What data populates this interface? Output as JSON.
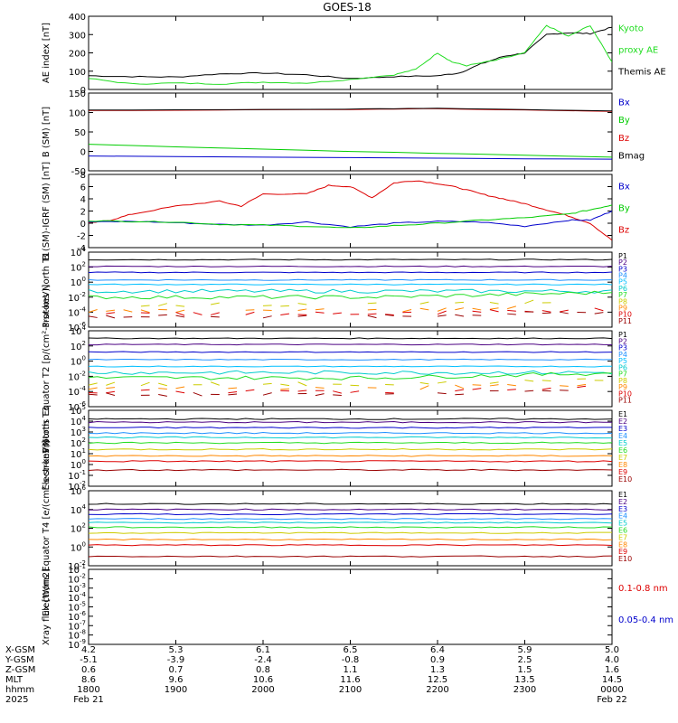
{
  "title": "GOES-18",
  "colors": {
    "black": "#000000",
    "blue": "#0000cc",
    "green": "#00cc00",
    "red": "#dd0000",
    "ae_green": "#22dd22",
    "darkred": "#990000"
  },
  "time_axis": {
    "start_hhmm": "1800",
    "end_hhmm": "0000",
    "ticks": [
      "1800",
      "1900",
      "2000",
      "2100",
      "2200",
      "2300",
      "0000"
    ],
    "date_left": "Feb 21",
    "date_right": "Feb 22",
    "year": "2025"
  },
  "ephemeris": {
    "row_labels": [
      "X-GSM",
      "Y-GSM",
      "Z-GSM",
      "MLT",
      "hhmm",
      "2025"
    ],
    "rows": [
      [
        "4.2",
        "5.3",
        "6.1",
        "6.5",
        "6.4",
        "5.9",
        "5.0"
      ],
      [
        "-5.1",
        "-3.9",
        "-2.4",
        "-0.8",
        "0.9",
        "2.5",
        "4.0"
      ],
      [
        "0.6",
        "0.7",
        "0.8",
        "1.1",
        "1.3",
        "1.5",
        "1.6"
      ],
      [
        "8.6",
        "9.6",
        "10.6",
        "11.6",
        "12.5",
        "13.5",
        "14.5"
      ],
      [
        "1800",
        "1900",
        "2000",
        "2100",
        "2200",
        "2300",
        "0000"
      ],
      [
        "Feb 21",
        "",
        "",
        "",
        "",
        "",
        "Feb 22"
      ]
    ]
  },
  "chart_data": [
    {
      "type": "line",
      "ylabel": "AE index [nT]",
      "ylim": [
        0,
        400
      ],
      "yticks": [
        "0",
        "100",
        "200",
        "300",
        "400"
      ],
      "legend": [
        {
          "text": "Kyoto",
          "color": "#22dd22"
        },
        {
          "text": "proxy AE",
          "color": "#22dd22"
        },
        {
          "text": "Themis AE",
          "color": "#000000"
        }
      ],
      "series": [
        {
          "name": "Themis AE",
          "color": "#000000",
          "x": [
            "1800",
            "1830",
            "1900",
            "1930",
            "2000",
            "2030",
            "2100",
            "2130",
            "2200",
            "2215",
            "2230",
            "2245",
            "2300",
            "2315",
            "2330",
            "2345",
            "0000"
          ],
          "y": [
            75,
            70,
            68,
            85,
            90,
            80,
            60,
            70,
            75,
            90,
            140,
            180,
            200,
            300,
            310,
            305,
            340
          ]
        },
        {
          "name": "Kyoto proxy AE",
          "color": "#22dd22",
          "x": [
            "1800",
            "1830",
            "1900",
            "1930",
            "2000",
            "2030",
            "2100",
            "2130",
            "2145",
            "2200",
            "2210",
            "2220",
            "2240",
            "2300",
            "2315",
            "2330",
            "2345",
            "0000"
          ],
          "y": [
            60,
            30,
            35,
            30,
            40,
            35,
            55,
            80,
            110,
            200,
            150,
            130,
            160,
            200,
            350,
            290,
            350,
            150
          ]
        }
      ]
    },
    {
      "type": "line",
      "ylabel": "B (SM) [nT]",
      "ylim": [
        -50,
        150
      ],
      "yticks": [
        "-50",
        "0",
        "50",
        "100",
        "150"
      ],
      "legend": [
        {
          "text": "Bx",
          "color": "#0000cc"
        },
        {
          "text": "By",
          "color": "#00cc00"
        },
        {
          "text": "Bz",
          "color": "#dd0000"
        },
        {
          "text": "Bmag",
          "color": "#000000"
        }
      ],
      "series": [
        {
          "name": "Bx",
          "color": "#0000cc",
          "x": [
            "1800",
            "0000"
          ],
          "y": [
            -12,
            -20
          ]
        },
        {
          "name": "By",
          "color": "#00cc00",
          "x": [
            "1800",
            "2100",
            "0000"
          ],
          "y": [
            18,
            0,
            -15
          ]
        },
        {
          "name": "Bz",
          "color": "#dd0000",
          "x": [
            "1800",
            "2100",
            "2200",
            "0000"
          ],
          "y": [
            105,
            108,
            110,
            103
          ]
        },
        {
          "name": "Bmag",
          "color": "#000000",
          "x": [
            "1800",
            "2100",
            "2200",
            "0000"
          ],
          "y": [
            106,
            109,
            111,
            104
          ]
        }
      ]
    },
    {
      "type": "line",
      "ylabel": "B (SM)-IGRF (SM) [nT]",
      "ylim": [
        -4,
        8
      ],
      "yticks": [
        "-4",
        "-2",
        "0",
        "2",
        "4",
        "6",
        "8"
      ],
      "legend": [
        {
          "text": "Bx",
          "color": "#0000cc"
        },
        {
          "text": "By",
          "color": "#00cc00"
        },
        {
          "text": "Bz",
          "color": "#dd0000"
        }
      ],
      "series": [
        {
          "name": "Bz",
          "color": "#dd0000",
          "x": [
            "1800",
            "1815",
            "1830",
            "1900",
            "1930",
            "1945",
            "2000",
            "2030",
            "2045",
            "2100",
            "2115",
            "2130",
            "2145",
            "2200",
            "2215",
            "2230",
            "2245",
            "2300",
            "2315",
            "2330",
            "2345",
            "0000"
          ],
          "y": [
            0,
            0.5,
            1.5,
            2.8,
            3.6,
            2.8,
            4.8,
            4.8,
            6.2,
            6.0,
            4.2,
            6.6,
            7.0,
            6.5,
            5.8,
            4.8,
            4.0,
            3.2,
            2.2,
            1.2,
            0.0,
            -2.8
          ]
        },
        {
          "name": "Bx",
          "color": "#0000cc",
          "x": [
            "1800",
            "1830",
            "1900",
            "1930",
            "2000",
            "2030",
            "2100",
            "2130",
            "2200",
            "2230",
            "2300",
            "2330",
            "2345",
            "0000"
          ],
          "y": [
            0.2,
            0.3,
            0.1,
            -0.2,
            -0.3,
            0.2,
            -0.6,
            0.0,
            0.3,
            0.2,
            -0.5,
            0.5,
            0.5,
            2.0
          ]
        },
        {
          "name": "By",
          "color": "#00cc00",
          "x": [
            "1800",
            "1830",
            "1900",
            "1930",
            "2000",
            "2030",
            "2100",
            "2130",
            "2200",
            "2230",
            "2300",
            "2330",
            "2345",
            "0000"
          ],
          "y": [
            0.4,
            0.3,
            0.2,
            -0.2,
            -0.3,
            -0.5,
            -0.8,
            -0.4,
            0.0,
            0.5,
            0.9,
            1.5,
            2.2,
            3.0
          ]
        }
      ]
    },
    {
      "type": "line",
      "ylabel": "Protons North T1",
      "ylim_exp": [
        -6,
        4
      ],
      "yticks_exp": [
        -6,
        -4,
        -2,
        0,
        2,
        4
      ],
      "legend": [
        {
          "text": "P1",
          "color": "#000000"
        },
        {
          "text": "P2",
          "color": "#4b0082"
        },
        {
          "text": "P3",
          "color": "#0000cc"
        },
        {
          "text": "P4",
          "color": "#1e90ff"
        },
        {
          "text": "P5",
          "color": "#00bfff"
        },
        {
          "text": "P6",
          "color": "#00cccc"
        },
        {
          "text": "P7",
          "color": "#22dd22"
        },
        {
          "text": "P8",
          "color": "#cccc00"
        },
        {
          "text": "P9",
          "color": "#ff8800"
        },
        {
          "text": "P10",
          "color": "#dd0000"
        },
        {
          "text": "P11",
          "color": "#990000"
        }
      ],
      "series": [
        {
          "name": "P1",
          "color": "#000000",
          "log_level": 3.0
        },
        {
          "name": "P2",
          "color": "#4b0082",
          "log_level": 2.1
        },
        {
          "name": "P3",
          "color": "#0000cc",
          "log_level": 1.3
        },
        {
          "name": "P4",
          "color": "#1e90ff",
          "log_level": 0.3
        },
        {
          "name": "P5",
          "color": "#00bfff",
          "log_level": -0.3
        },
        {
          "name": "P6",
          "color": "#00cccc",
          "log_level": -1.2
        },
        {
          "name": "P7",
          "color": "#22dd22",
          "log_level": -2.0
        },
        {
          "name": "P8",
          "color": "#cccc00",
          "log_level": -3.0
        },
        {
          "name": "P9",
          "color": "#ff8800",
          "log_level": -3.8
        },
        {
          "name": "P10",
          "color": "#dd0000",
          "log_level": -4.2
        },
        {
          "name": "P11",
          "color": "#990000",
          "log_level": -4.6
        }
      ]
    },
    {
      "type": "line",
      "ylabel": "Protons Equator T2 [p/(cm²-s-sr-keV)]",
      "ylim_exp": [
        -6,
        4
      ],
      "yticks_exp": [
        -6,
        -4,
        -2,
        0,
        2,
        4
      ],
      "legend": [
        {
          "text": "P1",
          "color": "#000000"
        },
        {
          "text": "P2",
          "color": "#4b0082"
        },
        {
          "text": "P3",
          "color": "#0000cc"
        },
        {
          "text": "P4",
          "color": "#1e90ff"
        },
        {
          "text": "P5",
          "color": "#00bfff"
        },
        {
          "text": "P6",
          "color": "#00cccc"
        },
        {
          "text": "P7",
          "color": "#22dd22"
        },
        {
          "text": "P8",
          "color": "#cccc00"
        },
        {
          "text": "P9",
          "color": "#ff8800"
        },
        {
          "text": "P10",
          "color": "#dd0000"
        },
        {
          "text": "P11",
          "color": "#990000"
        }
      ],
      "series": [
        {
          "name": "P1",
          "color": "#000000",
          "log_level": 3.0
        },
        {
          "name": "P2",
          "color": "#4b0082",
          "log_level": 2.2
        },
        {
          "name": "P3",
          "color": "#0000cc",
          "log_level": 1.2
        },
        {
          "name": "P4",
          "color": "#1e90ff",
          "log_level": 0.2
        },
        {
          "name": "P5",
          "color": "#00bfff",
          "log_level": -0.7
        },
        {
          "name": "P6",
          "color": "#00cccc",
          "log_level": -1.5
        },
        {
          "name": "P7",
          "color": "#22dd22",
          "log_level": -2.2
        },
        {
          "name": "P8",
          "color": "#cccc00",
          "log_level": -3.0
        },
        {
          "name": "P9",
          "color": "#ff8800",
          "log_level": -3.6
        },
        {
          "name": "P10",
          "color": "#dd0000",
          "log_level": -4.0
        },
        {
          "name": "P11",
          "color": "#990000",
          "log_level": -4.4
        }
      ]
    },
    {
      "type": "line",
      "ylabel": "Electrons North T3",
      "ylim_exp": [
        -2,
        5
      ],
      "yticks_exp": [
        -2,
        -1,
        0,
        1,
        2,
        3,
        4,
        5
      ],
      "legend": [
        {
          "text": "E1",
          "color": "#000000"
        },
        {
          "text": "E2",
          "color": "#4b0082"
        },
        {
          "text": "E3",
          "color": "#0000cc"
        },
        {
          "text": "E4",
          "color": "#1e90ff"
        },
        {
          "text": "E5",
          "color": "#00cccc"
        },
        {
          "text": "E6",
          "color": "#22dd22"
        },
        {
          "text": "E7",
          "color": "#cccc00"
        },
        {
          "text": "E8",
          "color": "#ff8800"
        },
        {
          "text": "E9",
          "color": "#dd0000"
        },
        {
          "text": "E10",
          "color": "#990000"
        }
      ],
      "series": [
        {
          "name": "E1",
          "color": "#000000",
          "log_level": 4.2
        },
        {
          "name": "E2",
          "color": "#4b0082",
          "log_level": 3.9
        },
        {
          "name": "E3",
          "color": "#0000cc",
          "log_level": 3.4
        },
        {
          "name": "E4",
          "color": "#1e90ff",
          "log_level": 2.9
        },
        {
          "name": "E5",
          "color": "#00cccc",
          "log_level": 2.5
        },
        {
          "name": "E6",
          "color": "#22dd22",
          "log_level": 2.0
        },
        {
          "name": "E7",
          "color": "#cccc00",
          "log_level": 1.4
        },
        {
          "name": "E8",
          "color": "#ff8800",
          "log_level": 0.8
        },
        {
          "name": "E9",
          "color": "#dd0000",
          "log_level": 0.3
        },
        {
          "name": "E10",
          "color": "#990000",
          "log_level": -0.5
        }
      ]
    },
    {
      "type": "line",
      "ylabel": "Electrons Equator T4 [e/(cm²-s-sr-keV)]",
      "ylim_exp": [
        -2,
        6
      ],
      "yticks_exp": [
        -2,
        0,
        2,
        4,
        6
      ],
      "legend": [
        {
          "text": "E1",
          "color": "#000000"
        },
        {
          "text": "E2",
          "color": "#4b0082"
        },
        {
          "text": "E3",
          "color": "#0000cc"
        },
        {
          "text": "E4",
          "color": "#1e90ff"
        },
        {
          "text": "E5",
          "color": "#00cccc"
        },
        {
          "text": "E6",
          "color": "#22dd22"
        },
        {
          "text": "E7",
          "color": "#cccc00"
        },
        {
          "text": "E8",
          "color": "#ff8800"
        },
        {
          "text": "E9",
          "color": "#dd0000"
        },
        {
          "text": "E10",
          "color": "#990000"
        }
      ],
      "series": [
        {
          "name": "E1",
          "color": "#000000",
          "log_level": 4.6
        },
        {
          "name": "E2",
          "color": "#4b0082",
          "log_level": 4.0
        },
        {
          "name": "E3",
          "color": "#0000cc",
          "log_level": 3.5
        },
        {
          "name": "E4",
          "color": "#1e90ff",
          "log_level": 3.0
        },
        {
          "name": "E5",
          "color": "#00cccc",
          "log_level": 2.6
        },
        {
          "name": "E6",
          "color": "#22dd22",
          "log_level": 2.1
        },
        {
          "name": "E7",
          "color": "#cccc00",
          "log_level": 1.5
        },
        {
          "name": "E8",
          "color": "#ff8800",
          "log_level": 0.8
        },
        {
          "name": "E9",
          "color": "#dd0000",
          "log_level": 0.2
        },
        {
          "name": "E10",
          "color": "#990000",
          "log_level": -1.0
        }
      ]
    },
    {
      "type": "line",
      "ylabel": "Xray flux [W/m2]",
      "ylim_exp": [
        -9,
        -1
      ],
      "yticks_exp": [
        -9,
        -8,
        -7,
        -6,
        -5,
        -4,
        -3,
        -2,
        -1
      ],
      "legend": [
        {
          "text": "0.1-0.8 nm",
          "color": "#dd0000"
        },
        {
          "text": "0.05-0.4 nm",
          "color": "#0000cc"
        }
      ],
      "series": []
    }
  ]
}
